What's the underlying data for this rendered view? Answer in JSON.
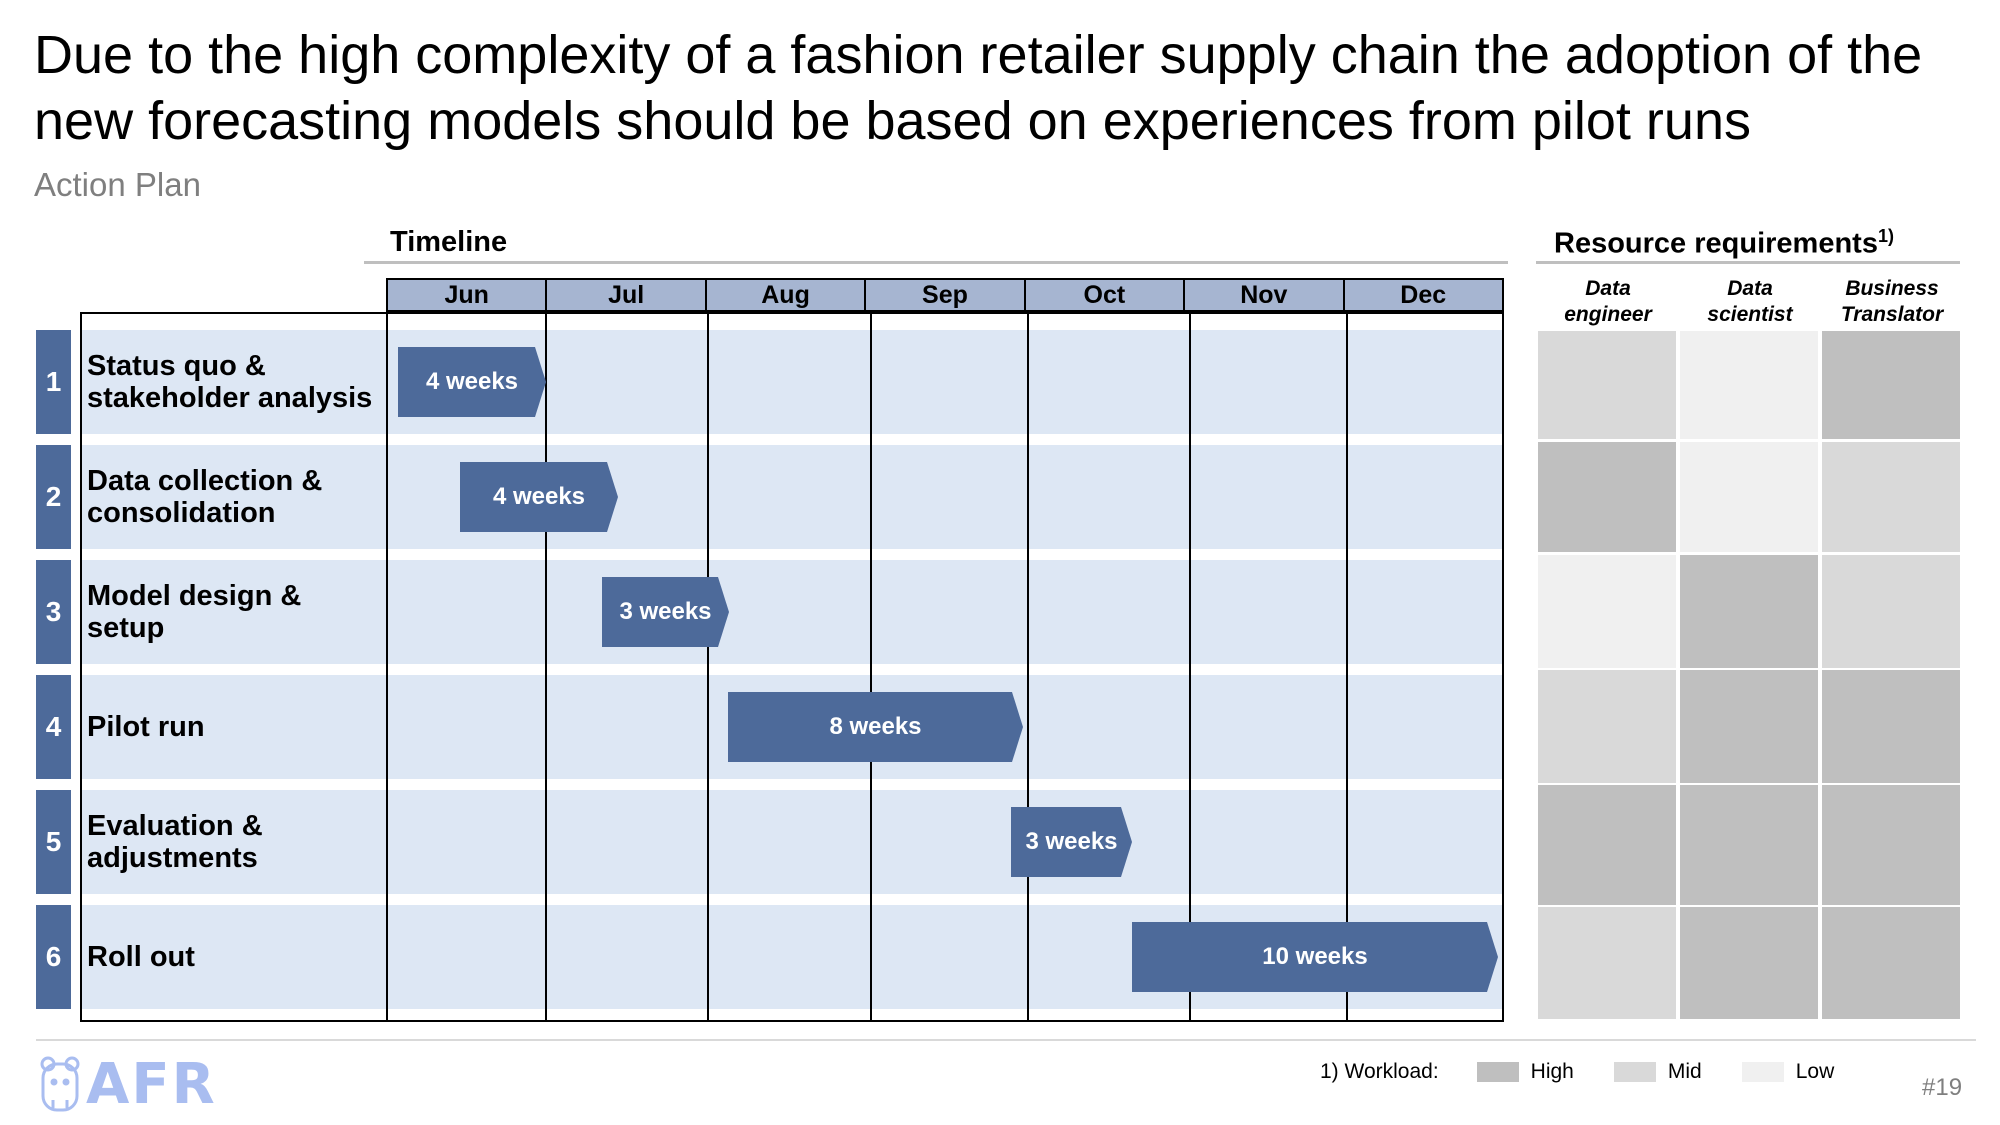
{
  "title": "Due to the high complexity of a fashion retailer supply chain the adoption of the new forecasting models should be based on experiences from pilot runs",
  "subtitle": "Action Plan",
  "timeline": {
    "heading": "Timeline",
    "months": [
      "Jun",
      "Jul",
      "Aug",
      "Sep",
      "Oct",
      "Nov",
      "Dec"
    ],
    "tasks": [
      {
        "num": "1",
        "label_line1": "Status quo &",
        "label_line2": "stakeholder analysis",
        "duration": "4 weeks"
      },
      {
        "num": "2",
        "label_line1": "Data collection &",
        "label_line2": "consolidation",
        "duration": "4 weeks"
      },
      {
        "num": "3",
        "label_line1": "Model design &",
        "label_line2": "setup",
        "duration": "3 weeks"
      },
      {
        "num": "4",
        "label_line1": "Pilot run",
        "label_line2": "",
        "duration": "8 weeks"
      },
      {
        "num": "5",
        "label_line1": "Evaluation &",
        "label_line2": "adjustments",
        "duration": "3 weeks"
      },
      {
        "num": "6",
        "label_line1": "Roll out",
        "label_line2": "",
        "duration": "10 weeks"
      }
    ]
  },
  "resources": {
    "heading": "Resource requirements",
    "footnote_mark": "1)",
    "roles": [
      {
        "line1": "Data",
        "line2": "engineer"
      },
      {
        "line1": "Data",
        "line2": "scientist"
      },
      {
        "line1": "Business",
        "line2": "Translator"
      }
    ],
    "workload": [
      [
        "Mid",
        "Low",
        "High"
      ],
      [
        "High",
        "Low",
        "Mid"
      ],
      [
        "Low",
        "High",
        "Mid"
      ],
      [
        "Mid",
        "High",
        "High"
      ],
      [
        "High",
        "High",
        "High"
      ],
      [
        "Mid",
        "High",
        "High"
      ]
    ],
    "workload_colors": {
      "High": "#bfbfbf",
      "Mid": "#d9d9d9",
      "Low": "#f0f0f0"
    }
  },
  "legend": {
    "label": "1) Workload:",
    "items": [
      "High",
      "Mid",
      "Low"
    ]
  },
  "page_number": "#19",
  "logo_text": "AFR"
}
